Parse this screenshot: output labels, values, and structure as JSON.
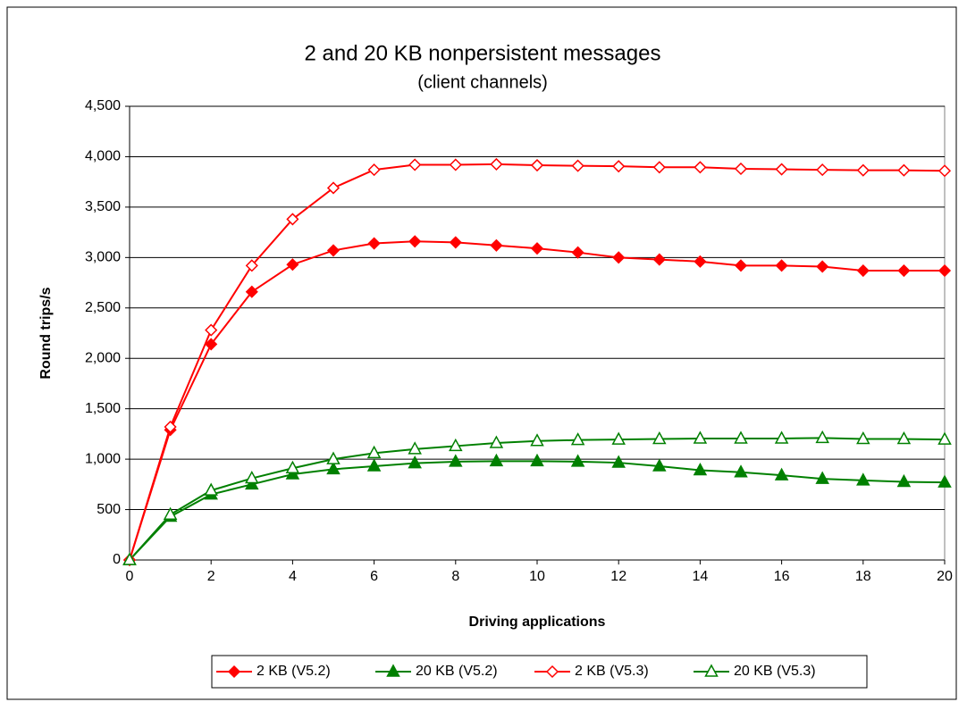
{
  "chart_data": {
    "type": "line",
    "title": "2 and 20 KB nonpersistent messages",
    "subtitle": "(client channels)",
    "x_label": "Driving applications",
    "y_label": "Round trips/s",
    "x": [
      0,
      1,
      2,
      3,
      4,
      5,
      6,
      7,
      8,
      9,
      10,
      11,
      12,
      13,
      14,
      15,
      16,
      17,
      18,
      19,
      20
    ],
    "series": [
      {
        "name": "2 KB (V5.2)",
        "color": "#ff0000",
        "marker": "diamond",
        "filled": true,
        "values": [
          0,
          1290,
          2140,
          2660,
          2930,
          3070,
          3140,
          3160,
          3150,
          3120,
          3090,
          3050,
          3000,
          2980,
          2960,
          2920,
          2920,
          2910,
          2870,
          2870,
          2870
        ]
      },
      {
        "name": "20 KB (V5.2)",
        "color": "#008000",
        "marker": "triangle",
        "filled": true,
        "values": [
          0,
          430,
          650,
          750,
          850,
          900,
          930,
          960,
          975,
          980,
          980,
          975,
          965,
          930,
          890,
          870,
          840,
          805,
          790,
          775,
          770
        ]
      },
      {
        "name": "2 KB (V5.3)",
        "color": "#ff0000",
        "marker": "diamond",
        "filled": false,
        "values": [
          0,
          1320,
          2280,
          2920,
          3380,
          3690,
          3870,
          3920,
          3920,
          3925,
          3915,
          3910,
          3905,
          3895,
          3895,
          3880,
          3875,
          3870,
          3865,
          3865,
          3860
        ]
      },
      {
        "name": "20 KB (V5.3)",
        "color": "#008000",
        "marker": "triangle",
        "filled": false,
        "values": [
          0,
          450,
          690,
          810,
          910,
          1000,
          1060,
          1100,
          1130,
          1160,
          1180,
          1190,
          1195,
          1200,
          1205,
          1205,
          1205,
          1210,
          1200,
          1200,
          1195
        ]
      }
    ],
    "xlim": [
      0,
      20
    ],
    "xticks": [
      0,
      2,
      4,
      6,
      8,
      10,
      12,
      14,
      16,
      18,
      20
    ],
    "ylim": [
      0,
      4500
    ],
    "yticks": [
      0,
      500,
      {
        "value": 1000,
        "label": "1,000"
      },
      {
        "value": 1500,
        "label": "1,500"
      },
      {
        "value": 2000,
        "label": "2,000"
      },
      {
        "value": 2500,
        "label": "2,500"
      },
      {
        "value": 3000,
        "label": "3,000"
      },
      {
        "value": 3500,
        "label": "3,500"
      },
      {
        "value": 4000,
        "label": "4,000"
      },
      {
        "value": 4500,
        "label": "4,500"
      }
    ],
    "grid": true,
    "legend": "bottom"
  }
}
